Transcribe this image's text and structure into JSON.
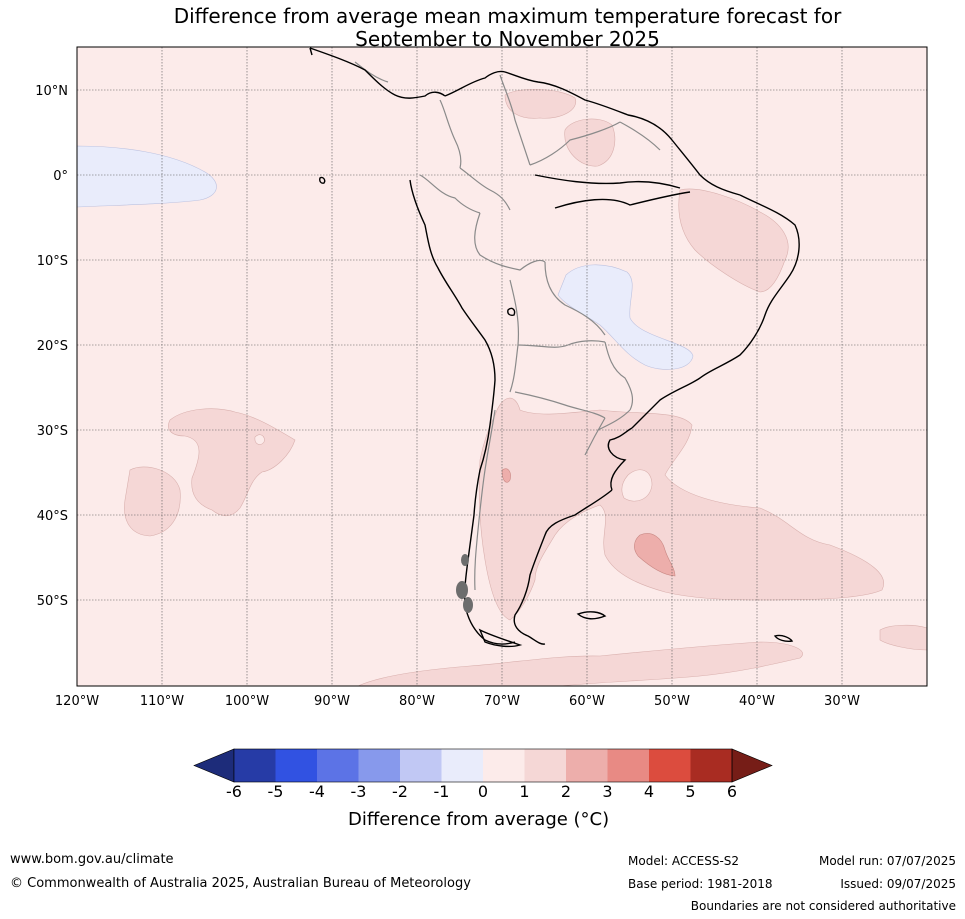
{
  "title": {
    "line1": "Difference from average mean maximum temperature forecast for",
    "line2": "September to November 2025"
  },
  "map": {
    "lat_labels": [
      "10°N",
      "0°",
      "10°S",
      "20°S",
      "30°S",
      "40°S",
      "50°S"
    ],
    "lon_labels": [
      "120°W",
      "110°W",
      "100°W",
      "90°W",
      "80°W",
      "70°W",
      "60°W",
      "50°W",
      "40°W",
      "30°W"
    ],
    "background_anomaly_class": "0 to 1",
    "colors": {
      "ocean_base": "#fcebea",
      "neg_0_1": "#e9ecfb",
      "pos_1_2": "#f5d7d6",
      "pos_2_3": "#edaeab"
    }
  },
  "colorbar": {
    "labels": [
      "-6",
      "-5",
      "-4",
      "-3",
      "-2",
      "-1",
      "0",
      "1",
      "2",
      "3",
      "4",
      "5",
      "6"
    ],
    "colors": [
      "#263ba6",
      "#3152e2",
      "#5c73e6",
      "#8799ec",
      "#c1c8f4",
      "#e9ecfb",
      "#fcebea",
      "#f5d7d6",
      "#edaeab",
      "#e88a84",
      "#dc4c3e",
      "#a92c22"
    ],
    "low_extend_color": "#1d2c7a",
    "high_extend_color": "#761d17",
    "title": "Difference from average (°C)"
  },
  "footer": {
    "website": "www.bom.gov.au/climate",
    "copyright": "© Commonwealth of Australia 2025, Australian Bureau of Meteorology",
    "model": "Model: ACCESS-S2",
    "base_period": "Base period: 1981-2018",
    "model_run": "Model run: 07/07/2025",
    "issued": "Issued: 09/07/2025",
    "disclaimer": "Boundaries are not considered authoritative"
  }
}
